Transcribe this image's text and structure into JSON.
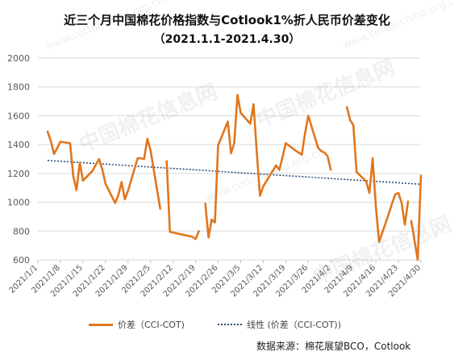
{
  "chart_data": {
    "type": "line",
    "title": "近三个月中国棉花价格指数与Cotlook1%折人民币价差变化",
    "subtitle": "（2021.1.1-2021.4.30）",
    "xlabel": "",
    "ylabel": "",
    "ylim": [
      600,
      2000
    ],
    "yticks": [
      600,
      800,
      1000,
      1200,
      1400,
      1600,
      1800,
      2000
    ],
    "grid": true,
    "legend_placement": "bottom",
    "x_start": "2021/1/1",
    "x_end": "2021/4/30",
    "tick_labels": [
      "2021/1/1",
      "2021/1/8",
      "2021/1/15",
      "2021/1/22",
      "2021/1/29",
      "2021/2/5",
      "2021/2/12",
      "2021/2/19",
      "2021/2/26",
      "2021/3/5",
      "2021/3/12",
      "2021/3/19",
      "2021/3/26",
      "2021/4/2",
      "2021/4/9",
      "2021/4/16",
      "2021/4/23",
      "2021/4/30"
    ],
    "series": [
      {
        "name": "价差（CCI-COT)",
        "color": "#E0761E",
        "style": "solid",
        "segments": [
          [
            [
              "2021/1/4",
              1490
            ],
            [
              "2021/1/5",
              1425
            ],
            [
              "2021/1/6",
              1335
            ],
            [
              "2021/1/7",
              1375
            ],
            [
              "2021/1/8",
              1420
            ],
            [
              "2021/1/11",
              1410
            ],
            [
              "2021/1/12",
              1180
            ],
            [
              "2021/1/13",
              1085
            ],
            [
              "2021/1/14",
              1275
            ],
            [
              "2021/1/15",
              1150
            ],
            [
              "2021/1/18",
              1220
            ],
            [
              "2021/1/19",
              1260
            ],
            [
              "2021/1/20",
              1300
            ],
            [
              "2021/1/21",
              1230
            ],
            [
              "2021/1/22",
              1130
            ],
            [
              "2021/1/25",
              995
            ],
            [
              "2021/1/26",
              1050
            ],
            [
              "2021/1/27",
              1140
            ],
            [
              "2021/1/28",
              1020
            ],
            [
              "2021/1/29",
              1080
            ],
            [
              "2021/2/1",
              1305
            ],
            [
              "2021/2/2",
              1305
            ],
            [
              "2021/2/3",
              1300
            ],
            [
              "2021/2/4",
              1440
            ],
            [
              "2021/2/5",
              1360
            ],
            [
              "2021/2/8",
              955
            ]
          ],
          [
            [
              "2021/2/10",
              1285
            ],
            [
              "2021/2/11",
              795
            ],
            [
              "2021/2/18",
              760
            ],
            [
              "2021/2/19",
              745
            ],
            [
              "2021/2/20",
              800
            ]
          ],
          [
            [
              "2021/2/22",
              990
            ],
            [
              "2021/2/23",
              755
            ],
            [
              "2021/2/24",
              880
            ],
            [
              "2021/2/25",
              860
            ],
            [
              "2021/2/26",
              1395
            ],
            [
              "2021/3/1",
              1560
            ],
            [
              "2021/3/2",
              1340
            ],
            [
              "2021/3/3",
              1410
            ],
            [
              "2021/3/4",
              1745
            ],
            [
              "2021/3/5",
              1620
            ],
            [
              "2021/3/8",
              1545
            ],
            [
              "2021/3/9",
              1680
            ],
            [
              "2021/3/10",
              1350
            ],
            [
              "2021/3/11",
              1045
            ],
            [
              "2021/3/12",
              1110
            ],
            [
              "2021/3/15",
              1220
            ],
            [
              "2021/3/16",
              1255
            ],
            [
              "2021/3/17",
              1225
            ],
            [
              "2021/3/18",
              1315
            ],
            [
              "2021/3/19",
              1410
            ],
            [
              "2021/3/22",
              1360
            ],
            [
              "2021/3/23",
              1345
            ],
            [
              "2021/3/24",
              1330
            ],
            [
              "2021/3/25",
              1480
            ],
            [
              "2021/3/26",
              1600
            ],
            [
              "2021/3/29",
              1380
            ],
            [
              "2021/3/30",
              1355
            ],
            [
              "2021/3/31",
              1345
            ],
            [
              "2021/4/1",
              1320
            ],
            [
              "2021/4/2",
              1225
            ]
          ],
          [
            [
              "2021/4/7",
              1660
            ],
            [
              "2021/4/8",
              1570
            ],
            [
              "2021/4/9",
              1535
            ],
            [
              "2021/4/10",
              1210
            ],
            [
              "2021/4/13",
              1145
            ],
            [
              "2021/4/14",
              1065
            ],
            [
              "2021/4/15",
              1305
            ],
            [
              "2021/4/16",
              970
            ],
            [
              "2021/4/17",
              725
            ],
            [
              "2021/4/20",
              920
            ],
            [
              "2021/4/21",
              990
            ],
            [
              "2021/4/22",
              1055
            ],
            [
              "2021/4/23",
              1065
            ],
            [
              "2021/4/24",
              995
            ],
            [
              "2021/4/25",
              845
            ],
            [
              "2021/4/26",
              1005
            ]
          ],
          [
            [
              "2021/4/27",
              870
            ],
            [
              "2021/4/28",
              735
            ],
            [
              "2021/4/29",
              600
            ],
            [
              "2021/4/30",
              1185
            ]
          ]
        ]
      },
      {
        "name": "线性 (价差（CCI-COT))",
        "color": "#2E4A7A",
        "style": "dotted",
        "points": [
          [
            "2021/1/4",
            1290
          ],
          [
            "2021/4/30",
            1125
          ]
        ]
      }
    ]
  },
  "source": "数据来源：棉花展望BCO，Cotlook",
  "watermark": {
    "brand": "中国棉花信息网",
    "url": "www.cottonchina.org.cn"
  }
}
